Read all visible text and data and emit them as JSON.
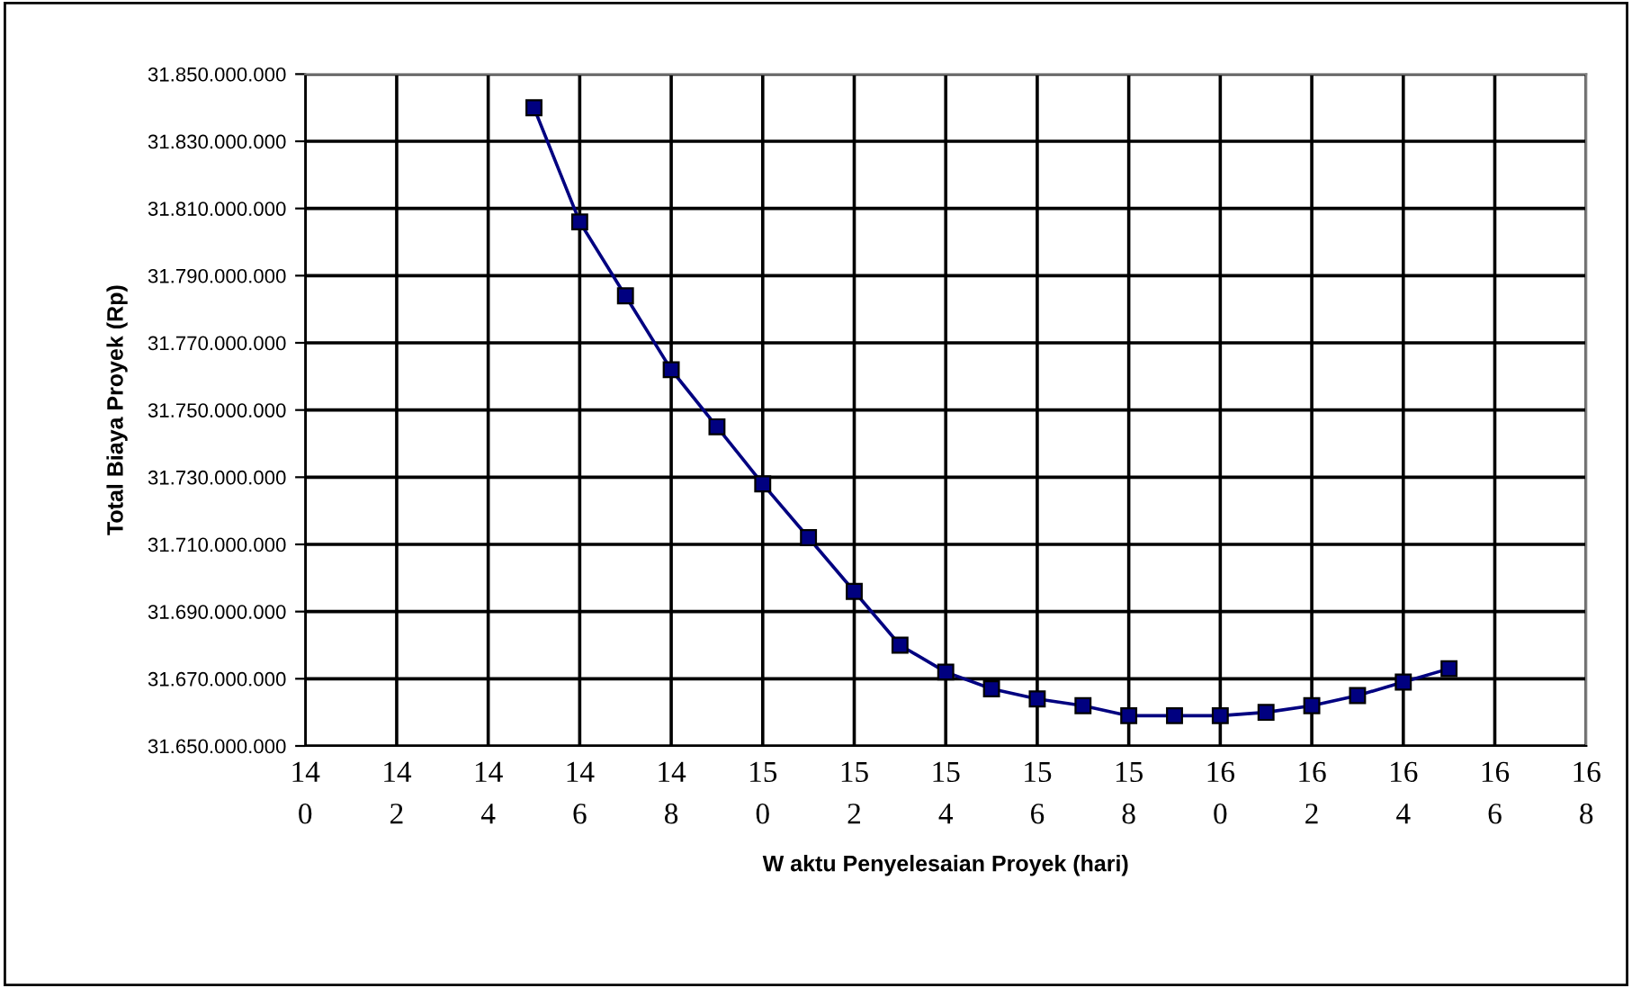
{
  "chart_data": {
    "type": "line",
    "xlabel": "W aktu Penyelesaian Proyek (hari)",
    "ylabel": "Total Biaya Proyek (Rp)",
    "x": [
      145,
      146,
      147,
      148,
      149,
      150,
      151,
      152,
      153,
      154,
      155,
      156,
      157,
      158,
      159,
      160,
      161,
      162,
      163,
      164,
      165
    ],
    "series": [
      {
        "color": "#000080",
        "values": [
          31840000000,
          31806000000,
          31784000000,
          31762000000,
          31745000000,
          31728000000,
          31712000000,
          31696000000,
          31680000000,
          31672000000,
          31667000000,
          31664000000,
          31662000000,
          31659000000,
          31659000000,
          31659000000,
          31660000000,
          31662000000,
          31665000000,
          31669000000,
          31673000000
        ]
      }
    ],
    "xlim": [
      140,
      168
    ],
    "xticks": [
      140,
      142,
      144,
      146,
      148,
      150,
      152,
      154,
      156,
      158,
      160,
      162,
      164,
      166,
      168
    ],
    "ylim": [
      31650000000,
      31850000000
    ],
    "yticks": [
      {
        "value": 31650000000,
        "label": "31.650.000.000"
      },
      {
        "value": 31670000000,
        "label": "31.670.000.000"
      },
      {
        "value": 31690000000,
        "label": "31.690.000.000"
      },
      {
        "value": 31710000000,
        "label": "31.710.000.000"
      },
      {
        "value": 31730000000,
        "label": "31.730.000.000"
      },
      {
        "value": 31750000000,
        "label": "31.750.000.000"
      },
      {
        "value": 31770000000,
        "label": "31.770.000.000"
      },
      {
        "value": 31790000000,
        "label": "31.790.000.000"
      },
      {
        "value": 31810000000,
        "label": "31.810.000.000"
      },
      {
        "value": 31830000000,
        "label": "31.830.000.000"
      },
      {
        "value": 31850000000,
        "label": "31.850.000.000"
      }
    ],
    "grid": true,
    "marker": "square",
    "line_style": "solid",
    "legend": false
  }
}
